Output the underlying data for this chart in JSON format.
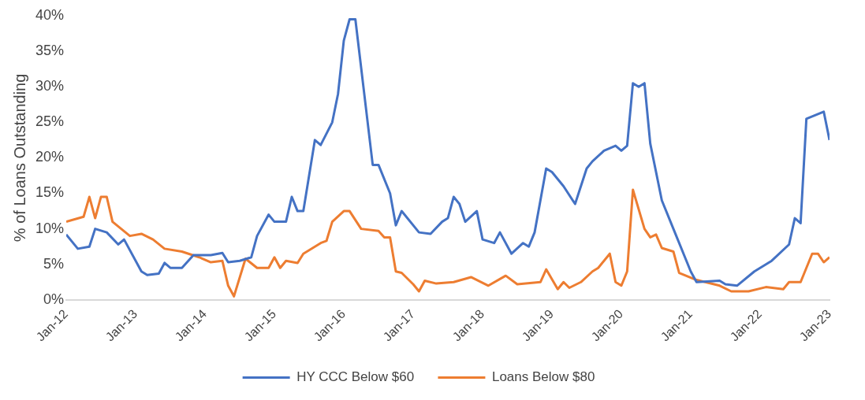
{
  "chart_data": {
    "type": "line",
    "ylabel": "% of Loans Outstanding",
    "legend": "bottom",
    "grid": false,
    "marker": "none",
    "line_style": "solid",
    "xlim": [
      "2012-01",
      "2023-01"
    ],
    "xticks": [
      {
        "value": "2012-01",
        "label": "Jan-12"
      },
      {
        "value": "2013-01",
        "label": "Jan-13"
      },
      {
        "value": "2014-01",
        "label": "Jan-14"
      },
      {
        "value": "2015-01",
        "label": "Jan-15"
      },
      {
        "value": "2016-01",
        "label": "Jan-16"
      },
      {
        "value": "2017-01",
        "label": "Jan-17"
      },
      {
        "value": "2018-01",
        "label": "Jan-18"
      },
      {
        "value": "2019-01",
        "label": "Jan-19"
      },
      {
        "value": "2020-01",
        "label": "Jan-20"
      },
      {
        "value": "2021-01",
        "label": "Jan-21"
      },
      {
        "value": "2022-01",
        "label": "Jan-22"
      },
      {
        "value": "2023-01",
        "label": "Jan-23"
      }
    ],
    "ylim": [
      0,
      40
    ],
    "yticks": [
      {
        "value": 0,
        "label": "0%"
      },
      {
        "value": 5,
        "label": "5%"
      },
      {
        "value": 10,
        "label": "10%"
      },
      {
        "value": 15,
        "label": "15%"
      },
      {
        "value": 20,
        "label": "20%"
      },
      {
        "value": 25,
        "label": "25%"
      },
      {
        "value": 30,
        "label": "30%"
      },
      {
        "value": 35,
        "label": "35%"
      },
      {
        "value": 40,
        "label": "40%"
      }
    ],
    "series": [
      {
        "name": "HY CCC Below $60",
        "color": "#4472c4",
        "x": [
          "2012-01",
          "2012-03",
          "2012-05",
          "2012-06",
          "2012-08",
          "2012-10",
          "2012-11",
          "2013-02",
          "2013-03",
          "2013-05",
          "2013-06",
          "2013-07",
          "2013-09",
          "2013-11",
          "2014-02",
          "2014-04",
          "2014-05",
          "2014-07",
          "2014-09",
          "2014-10",
          "2014-12",
          "2015-01",
          "2015-03",
          "2015-04",
          "2015-05",
          "2015-06",
          "2015-08",
          "2015-09",
          "2015-11",
          "2015-12",
          "2016-01",
          "2016-02",
          "2016-03",
          "2016-06",
          "2016-07",
          "2016-09",
          "2016-10",
          "2016-11",
          "2017-02",
          "2017-04",
          "2017-06",
          "2017-07",
          "2017-08",
          "2017-09",
          "2017-10",
          "2017-12",
          "2018-01",
          "2018-03",
          "2018-04",
          "2018-06",
          "2018-08",
          "2018-09",
          "2018-10",
          "2018-12",
          "2019-01",
          "2019-03",
          "2019-05",
          "2019-07",
          "2019-08",
          "2019-10",
          "2019-12",
          "2020-01",
          "2020-02",
          "2020-03",
          "2020-04",
          "2020-05",
          "2020-06",
          "2020-08",
          "2020-10",
          "2021-01",
          "2021-02",
          "2021-06",
          "2021-07",
          "2021-09",
          "2021-12",
          "2022-03",
          "2022-06",
          "2022-07",
          "2022-08",
          "2022-09",
          "2022-12",
          "2023-01"
        ],
        "values": [
          9.2,
          7.2,
          7.5,
          10,
          9.5,
          7.8,
          8.5,
          4,
          3.5,
          3.7,
          5.2,
          4.5,
          4.5,
          6.3,
          6.3,
          6.6,
          5.3,
          5.5,
          6,
          9,
          12,
          11,
          11,
          14.5,
          12.5,
          12.5,
          22.5,
          21.8,
          25,
          29,
          36.5,
          39.5,
          39.5,
          19,
          19,
          15,
          10.5,
          12.5,
          9.5,
          9.3,
          11,
          11.5,
          14.5,
          13.5,
          11,
          12.5,
          8.5,
          8,
          9.5,
          6.5,
          8,
          7.5,
          9.5,
          18.5,
          18,
          16,
          13.5,
          18.5,
          19.5,
          21,
          21.7,
          21,
          21.7,
          30.5,
          30,
          30.5,
          22,
          14,
          10,
          4,
          2.5,
          2.7,
          2.2,
          2,
          4,
          5.5,
          7.8,
          11.5,
          10.8,
          25.5,
          26.5,
          22.5
        ]
      },
      {
        "name": "Loans Below $80",
        "color": "#ed7d31",
        "x": [
          "2012-01",
          "2012-04",
          "2012-05",
          "2012-06",
          "2012-07",
          "2012-08",
          "2012-09",
          "2012-12",
          "2013-02",
          "2013-04",
          "2013-06",
          "2013-09",
          "2013-12",
          "2014-02",
          "2014-04",
          "2014-05",
          "2014-06",
          "2014-08",
          "2014-10",
          "2014-12",
          "2015-01",
          "2015-02",
          "2015-03",
          "2015-05",
          "2015-06",
          "2015-09",
          "2015-10",
          "2015-11",
          "2016-01",
          "2016-02",
          "2016-04",
          "2016-07",
          "2016-08",
          "2016-09",
          "2016-10",
          "2016-11",
          "2017-01",
          "2017-02",
          "2017-03",
          "2017-05",
          "2017-08",
          "2017-11",
          "2018-02",
          "2018-05",
          "2018-07",
          "2018-11",
          "2018-12",
          "2019-02",
          "2019-03",
          "2019-04",
          "2019-06",
          "2019-08",
          "2019-09",
          "2019-11",
          "2019-12",
          "2020-01",
          "2020-02",
          "2020-03",
          "2020-05",
          "2020-06",
          "2020-07",
          "2020-08",
          "2020-10",
          "2020-11",
          "2021-02",
          "2021-06",
          "2021-08",
          "2021-11",
          "2022-02",
          "2022-05",
          "2022-06",
          "2022-08",
          "2022-10",
          "2022-11",
          "2022-12",
          "2023-01"
        ],
        "values": [
          11,
          11.7,
          14.5,
          11.5,
          14.5,
          14.5,
          11,
          9,
          9.3,
          8.5,
          7.2,
          6.8,
          6,
          5.3,
          5.5,
          2,
          0.5,
          5.8,
          4.5,
          4.5,
          6,
          4.5,
          5.5,
          5.2,
          6.5,
          8,
          8.3,
          11,
          12.5,
          12.5,
          10,
          9.7,
          8.8,
          8.8,
          4,
          3.8,
          2.2,
          1.2,
          2.7,
          2.3,
          2.5,
          3.2,
          2,
          3.4,
          2.2,
          2.5,
          4.3,
          1.5,
          2.5,
          1.7,
          2.5,
          4,
          4.5,
          6.5,
          2.5,
          2,
          4,
          15.5,
          10,
          8.8,
          9.2,
          7.3,
          6.8,
          3.8,
          2.8,
          2,
          1.2,
          1.2,
          1.8,
          1.5,
          2.5,
          2.5,
          6.5,
          6.5,
          5.3,
          6
        ]
      }
    ]
  }
}
